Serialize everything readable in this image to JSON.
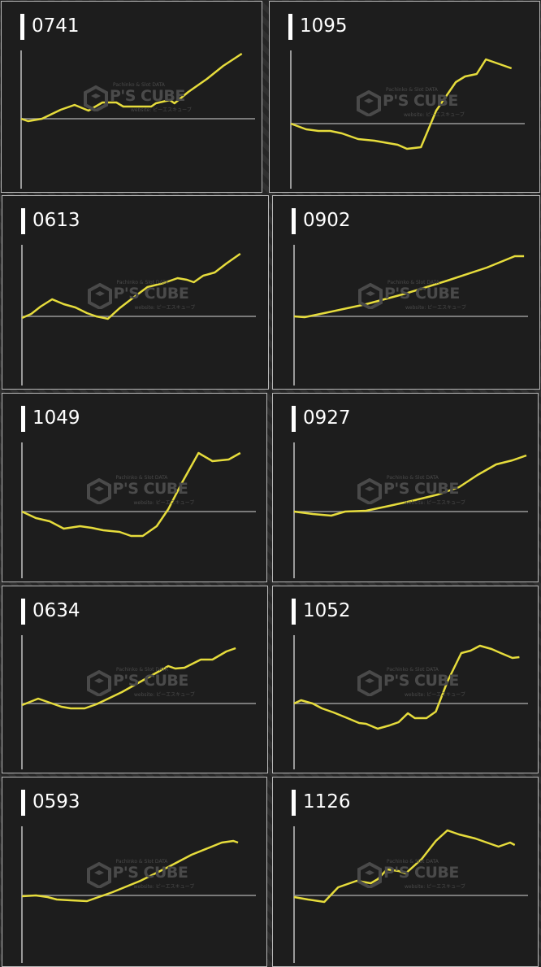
{
  "watermark": {
    "line1": "Pachinko & Slot DATA",
    "brand": "P'S CUBE",
    "line2": "website: ピーエスキューブ"
  },
  "colors": {
    "line": "#e6dc3c",
    "axis": "#9a9a9a",
    "panel": "#1d1d1d",
    "title": "#ffffff"
  },
  "chart_data": [
    {
      "type": "line",
      "title": "0741",
      "x": [
        0,
        3,
        9,
        17,
        23,
        29,
        35,
        41,
        44,
        56,
        58,
        64,
        66,
        72,
        80,
        87,
        95
      ],
      "y": [
        0,
        -3,
        0,
        11,
        17,
        10,
        20,
        20,
        15,
        15,
        19,
        23,
        19,
        33,
        49,
        65,
        80
      ]
    },
    {
      "type": "line",
      "title": "1095",
      "x": [
        0,
        6.6,
        11.9,
        17,
        22,
        29,
        36,
        42,
        46,
        50,
        56,
        62.6,
        71,
        75,
        80,
        84,
        90,
        95
      ],
      "y": [
        0,
        -7,
        -9,
        -9,
        -12,
        -19,
        -21,
        -24,
        -26,
        -31,
        -29,
        16,
        51,
        58,
        61,
        79,
        73,
        68
      ]
    },
    {
      "type": "line",
      "title": "0613",
      "x": [
        0,
        4,
        8,
        13,
        18,
        23,
        28,
        32,
        37,
        42,
        47,
        54,
        61,
        67,
        71,
        74,
        78,
        83,
        88,
        94
      ],
      "y": [
        -2,
        3,
        12,
        21,
        15,
        11,
        4,
        0,
        -3,
        10,
        21,
        36,
        41,
        47,
        45,
        42,
        50,
        54,
        65,
        77
      ]
    },
    {
      "type": "line",
      "title": "0902",
      "x": [
        0,
        4.5,
        13,
        31,
        48,
        66,
        83,
        95,
        99
      ],
      "y": [
        0,
        -1,
        4,
        15,
        28,
        44,
        60,
        74,
        74
      ]
    },
    {
      "type": "line",
      "title": "1049",
      "x": [
        0,
        6,
        12,
        18,
        25,
        30,
        35,
        42,
        47,
        52,
        58,
        63,
        69,
        76,
        82,
        89,
        94
      ],
      "y": [
        0,
        -8,
        -12,
        -21,
        -18,
        -20,
        -23,
        -25,
        -30,
        -30,
        -18,
        3,
        36,
        72,
        62,
        64,
        72
      ]
    },
    {
      "type": "line",
      "title": "0927",
      "x": [
        0,
        8,
        16,
        22,
        31,
        41,
        52,
        62,
        71,
        79,
        87,
        94,
        100
      ],
      "y": [
        0,
        -3,
        -5,
        0,
        1,
        7,
        14,
        21,
        30,
        45,
        58,
        63,
        69
      ]
    },
    {
      "type": "line",
      "title": "0634",
      "x": [
        0,
        7,
        13,
        17,
        21,
        27,
        32,
        43,
        53,
        63,
        66,
        70,
        77,
        82,
        88,
        92
      ],
      "y": [
        -2,
        6,
        0,
        -4,
        -6,
        -6,
        -1,
        14,
        30,
        46,
        43,
        44,
        54,
        54,
        64,
        68
      ]
    },
    {
      "type": "line",
      "title": "1052",
      "x": [
        0,
        3,
        8,
        12,
        17,
        23,
        28,
        31,
        36,
        41,
        45,
        49,
        52,
        57,
        61,
        66,
        72,
        76,
        80,
        85,
        89,
        94,
        97
      ],
      "y": [
        0,
        4,
        0,
        -6,
        -11,
        -18,
        -24,
        -25,
        -31,
        -27,
        -23,
        -12,
        -18,
        -18,
        -10,
        27,
        62,
        65,
        71,
        67,
        62,
        56,
        57
      ]
    },
    {
      "type": "line",
      "title": "0593",
      "x": [
        0,
        6,
        11,
        15,
        21,
        28,
        39,
        51,
        63,
        73,
        86,
        91,
        93
      ],
      "y": [
        -1,
        0,
        -2,
        -5,
        -6,
        -7,
        4,
        18,
        35,
        50,
        65,
        67,
        65
      ]
    },
    {
      "type": "line",
      "title": "1126",
      "x": [
        0,
        6,
        13,
        19,
        27,
        33,
        36,
        40,
        45,
        48,
        55,
        61,
        66,
        71,
        78,
        83,
        88,
        93,
        95
      ],
      "y": [
        -2,
        -5,
        -8,
        10,
        18,
        15,
        20,
        32,
        30,
        27,
        45,
        67,
        80,
        75,
        70,
        65,
        60,
        65,
        62
      ]
    }
  ]
}
